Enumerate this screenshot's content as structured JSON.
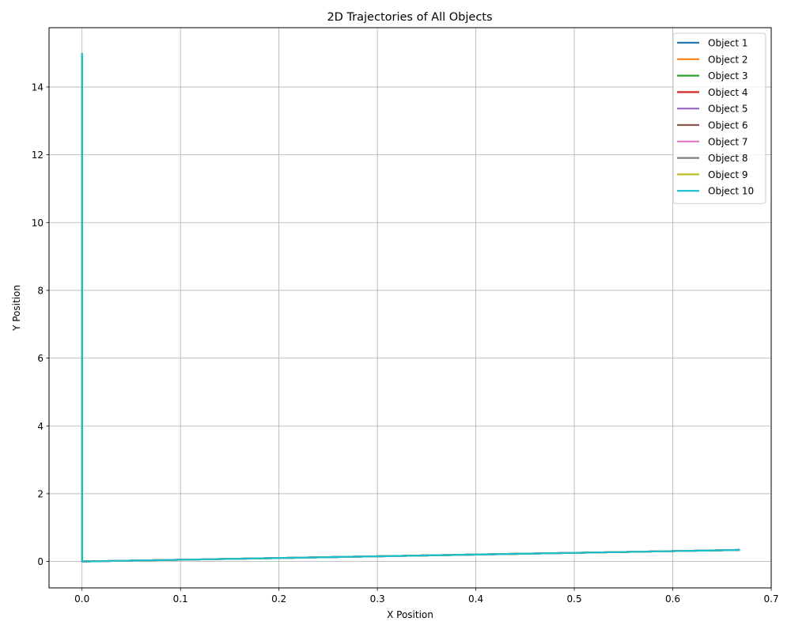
{
  "chart_data": {
    "type": "line",
    "title": "2D Trajectories of All Objects",
    "xlabel": "X Position",
    "ylabel": "Y Position",
    "xlim": [
      -0.0335,
      0.7
    ],
    "ylim": [
      -0.78,
      15.75
    ],
    "xticks": [
      0.0,
      0.1,
      0.2,
      0.3,
      0.4,
      0.5,
      0.6,
      0.7
    ],
    "xtick_labels": [
      "0.0",
      "0.1",
      "0.2",
      "0.3",
      "0.4",
      "0.5",
      "0.6",
      "0.7"
    ],
    "yticks": [
      0,
      2,
      4,
      6,
      8,
      10,
      12,
      14
    ],
    "ytick_labels": [
      "0",
      "2",
      "4",
      "6",
      "8",
      "10",
      "12",
      "14"
    ],
    "grid": true,
    "legend_position": "top-right",
    "series": [
      {
        "name": "Object 1",
        "color": "#1f77b4",
        "x": [
          0.0,
          0.0,
          0.668
        ],
        "y": [
          15.0,
          0.0,
          0.34
        ]
      },
      {
        "name": "Object 2",
        "color": "#ff7f0e",
        "x": [
          0.0,
          0.0,
          0.668
        ],
        "y": [
          15.0,
          0.0,
          0.34
        ]
      },
      {
        "name": "Object 3",
        "color": "#2ca02c",
        "x": [
          0.0,
          0.0,
          0.668
        ],
        "y": [
          15.0,
          0.0,
          0.34
        ]
      },
      {
        "name": "Object 4",
        "color": "#d62728",
        "x": [
          0.0,
          0.0,
          0.668
        ],
        "y": [
          15.0,
          0.0,
          0.34
        ]
      },
      {
        "name": "Object 5",
        "color": "#9467bd",
        "x": [
          0.0,
          0.0,
          0.668
        ],
        "y": [
          15.0,
          0.0,
          0.34
        ]
      },
      {
        "name": "Object 6",
        "color": "#8c564b",
        "x": [
          0.0,
          0.0,
          0.668
        ],
        "y": [
          15.0,
          0.0,
          0.34
        ]
      },
      {
        "name": "Object 7",
        "color": "#e377c2",
        "x": [
          0.0,
          0.0,
          0.668
        ],
        "y": [
          15.0,
          0.0,
          0.34
        ]
      },
      {
        "name": "Object 8",
        "color": "#7f7f7f",
        "x": [
          0.0,
          0.0,
          0.668
        ],
        "y": [
          15.0,
          0.0,
          0.34
        ]
      },
      {
        "name": "Object 9",
        "color": "#bcbd22",
        "x": [
          0.0,
          0.0,
          0.668
        ],
        "y": [
          15.0,
          0.0,
          0.34
        ]
      },
      {
        "name": "Object 10",
        "color": "#17becf",
        "x": [
          0.0,
          0.0,
          0.668
        ],
        "y": [
          15.0,
          0.0,
          0.34
        ]
      }
    ]
  }
}
